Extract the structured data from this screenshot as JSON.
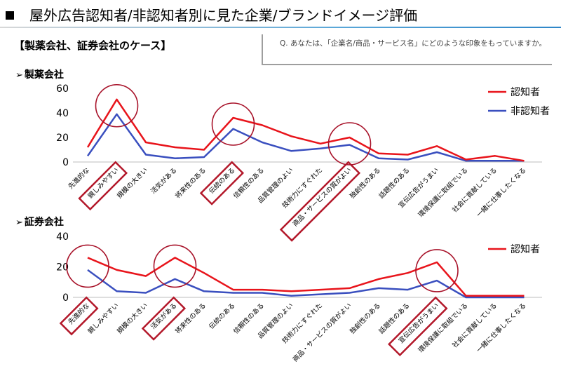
{
  "slide": {
    "title": "屋外広告認知者/非認知者別に見た企業/ブランドイメージ評価",
    "section_heading": "【製薬会社、証券会社のケース】",
    "question": "Q. あなたは、「企業名/商品・サービス名」にどのような印象をもっていますか。",
    "accent_color": "#2e86c8"
  },
  "chart_data": [
    {
      "type": "line",
      "title": "製薬会社",
      "categories": [
        "先進的な",
        "親しみやすい",
        "規模の大きい",
        "活気がある",
        "将来性のある",
        "伝統のある",
        "信頼性のある",
        "品質管理のよい",
        "技術力にすぐれた",
        "商品・サービスの質がよい",
        "独創性のある",
        "話題性のある",
        "宣伝広告がうまい",
        "環境保護に取組でいる",
        "社会に貢献している",
        "一緒に仕事したくなる"
      ],
      "series": [
        {
          "name": "認知者",
          "color": "#e8141b",
          "values": [
            12,
            51,
            16,
            12,
            10,
            36,
            30,
            21,
            15,
            20,
            7,
            6,
            13,
            2,
            5,
            1
          ]
        },
        {
          "name": "非認知者",
          "color": "#3a4fbf",
          "values": [
            5,
            39,
            6,
            3,
            4,
            27,
            16,
            9,
            11,
            14,
            3,
            2,
            8,
            1,
            1,
            1
          ]
        }
      ],
      "ylim": [
        0,
        60
      ],
      "yticks": [
        "0",
        "20",
        "40",
        "60"
      ],
      "legend_position": "top-right",
      "highlighted_categories": [
        "親しみやすい",
        "伝統のある",
        "商品・サービスの質がよい"
      ],
      "circled_peaks": [
        "親しみやすい",
        "伝統のある",
        "商品・サービスの質がよい"
      ]
    },
    {
      "type": "line",
      "title": "証券会社",
      "categories": [
        "先進的な",
        "親しみやすい",
        "規模の大きい",
        "活気がある",
        "将来性のある",
        "伝統のある",
        "信頼性のある",
        "品質管理のよい",
        "技術力にすぐれた",
        "商品・サービスの質がよい",
        "独創性のある",
        "話題性のある",
        "宣伝広告がうまい",
        "環境保護に取組でいる",
        "社会に貢献している",
        "一緒に仕事したくなる"
      ],
      "series": [
        {
          "name": "認知者",
          "color": "#e8141b",
          "values": [
            26,
            18,
            14,
            26,
            16,
            5,
            5,
            4,
            5,
            6,
            12,
            16,
            23,
            1,
            1,
            1
          ]
        },
        {
          "name": "",
          "color": "#3a4fbf",
          "values": [
            18,
            4,
            3,
            12,
            4,
            3,
            3,
            1,
            2,
            3,
            6,
            5,
            11,
            0,
            0,
            0
          ]
        }
      ],
      "ylim": [
        0,
        40
      ],
      "yticks": [
        "0",
        "20",
        "40"
      ],
      "legend_position": "top-right",
      "highlighted_categories": [
        "先進的な",
        "活気がある",
        "宣伝広告がうまい"
      ],
      "circled_peaks": [
        "先進的な",
        "活気がある",
        "宣伝広告がうまい"
      ]
    }
  ]
}
